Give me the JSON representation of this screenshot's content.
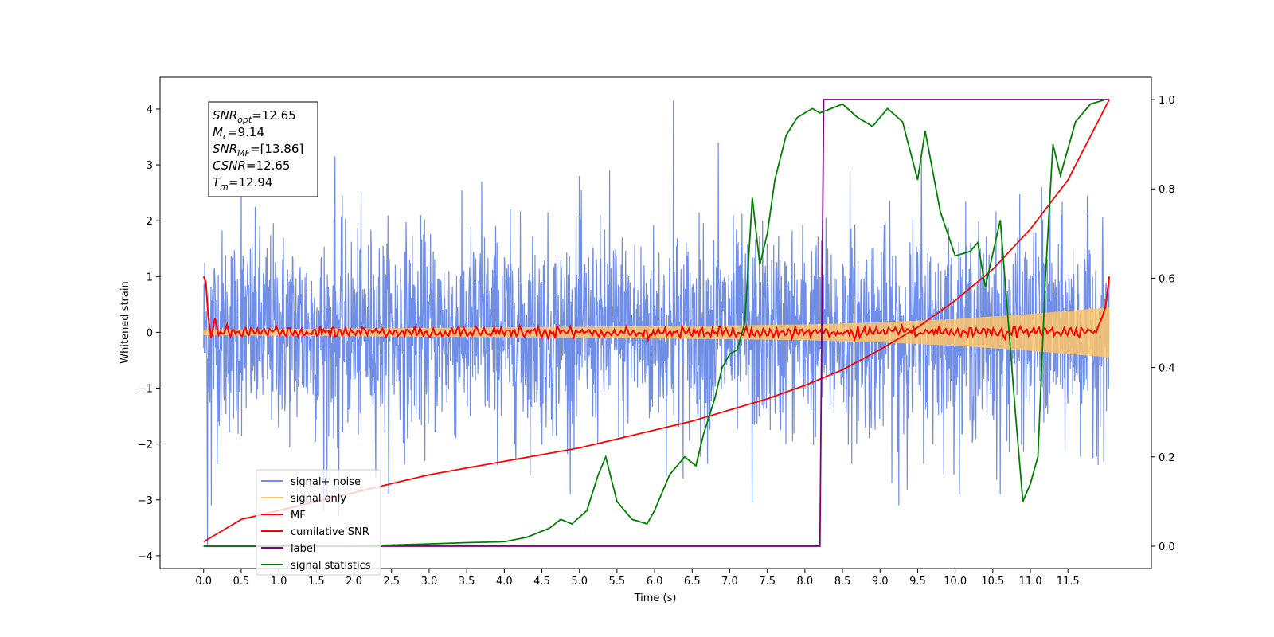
{
  "chart_data": {
    "type": "line",
    "xlabel": "Time (s)",
    "ylabel": "Whitened strain",
    "ylabel_right": "",
    "xlim": [
      -0.58,
      12.61
    ],
    "ylim_left": [
      -4.23,
      4.57
    ],
    "ylim_right": [
      -0.05,
      1.05
    ],
    "grid": false,
    "x_ticks": [
      {
        "value": 0.0,
        "label": "0.0"
      },
      {
        "value": 0.5,
        "label": "0.5"
      },
      {
        "value": 1.0,
        "label": "1.0"
      },
      {
        "value": 1.5,
        "label": "1.5"
      },
      {
        "value": 2.0,
        "label": "2.0"
      },
      {
        "value": 2.5,
        "label": "2.5"
      },
      {
        "value": 3.0,
        "label": "3.0"
      },
      {
        "value": 3.5,
        "label": "3.5"
      },
      {
        "value": 4.0,
        "label": "4.0"
      },
      {
        "value": 4.5,
        "label": "4.5"
      },
      {
        "value": 5.0,
        "label": "5.0"
      },
      {
        "value": 5.5,
        "label": "5.5"
      },
      {
        "value": 6.0,
        "label": "6.0"
      },
      {
        "value": 6.5,
        "label": "6.5"
      },
      {
        "value": 7.0,
        "label": "7.0"
      },
      {
        "value": 7.5,
        "label": "7.5"
      },
      {
        "value": 8.0,
        "label": "8.0"
      },
      {
        "value": 8.5,
        "label": "8.5"
      },
      {
        "value": 9.0,
        "label": "9.0"
      },
      {
        "value": 9.5,
        "label": "9.5"
      },
      {
        "value": 10.0,
        "label": "10.0"
      },
      {
        "value": 10.5,
        "label": "10.5"
      },
      {
        "value": 11.0,
        "label": "11.0"
      },
      {
        "value": 11.5,
        "label": "11.5"
      }
    ],
    "y_ticks_left": [
      {
        "value": -4,
        "label": "−4"
      },
      {
        "value": -3,
        "label": "−3"
      },
      {
        "value": -2,
        "label": "−2"
      },
      {
        "value": -1,
        "label": "−1"
      },
      {
        "value": 0,
        "label": "0"
      },
      {
        "value": 1,
        "label": "1"
      },
      {
        "value": 2,
        "label": "2"
      },
      {
        "value": 3,
        "label": "3"
      },
      {
        "value": 4,
        "label": "4"
      }
    ],
    "y_ticks_right": [
      {
        "value": 0.0,
        "label": "0.0"
      },
      {
        "value": 0.2,
        "label": "0.2"
      },
      {
        "value": 0.4,
        "label": "0.4"
      },
      {
        "value": 0.6,
        "label": "0.6"
      },
      {
        "value": 0.8,
        "label": "0.8"
      },
      {
        "value": 1.0,
        "label": "1.0"
      }
    ],
    "info_box": [
      {
        "name": "SNR",
        "sub": "opt",
        "value": "=12.65"
      },
      {
        "name": "M",
        "sub": "c",
        "value": "=9.14"
      },
      {
        "name": "SNR",
        "sub": "MF",
        "value": "=[13.86]"
      },
      {
        "name": "CSNR",
        "sub": "",
        "value": "=12.65"
      },
      {
        "name": "T",
        "sub": "m",
        "value": "=12.94"
      }
    ],
    "series": [
      {
        "name": "signal+ noise",
        "axis": "left",
        "color": "#6f8ee8",
        "kind": "noise",
        "x_range": [
          0.0,
          12.05
        ],
        "center": 0.0,
        "typical_amplitude": 1.2,
        "spikes": [
          {
            "x": 0.05,
            "y": -3.8
          },
          {
            "x": 0.1,
            "y": -3.1
          },
          {
            "x": 0.5,
            "y": 2.9
          },
          {
            "x": 1.6,
            "y": -3.2
          },
          {
            "x": 1.75,
            "y": 3.15
          },
          {
            "x": 1.8,
            "y": -3.3
          },
          {
            "x": 3.7,
            "y": 2.7
          },
          {
            "x": 5.0,
            "y": 2.8
          },
          {
            "x": 5.4,
            "y": 2.9
          },
          {
            "x": 6.25,
            "y": 4.15
          },
          {
            "x": 6.85,
            "y": 3.4
          },
          {
            "x": 7.3,
            "y": -3.05
          },
          {
            "x": 8.6,
            "y": 2.9
          },
          {
            "x": 9.25,
            "y": -3.1
          },
          {
            "x": 9.55,
            "y": 3.1
          },
          {
            "x": 10.6,
            "y": -2.9
          },
          {
            "x": 11.15,
            "y": 2.6
          }
        ]
      },
      {
        "name": "signal only",
        "axis": "left",
        "color": "#ffc56a",
        "kind": "chirp",
        "x_range": [
          0.0,
          12.05
        ],
        "envelope_x": [
          0.0,
          2.0,
          4.0,
          6.0,
          8.0,
          9.0,
          10.0,
          11.0,
          12.05
        ],
        "envelope_y": [
          0.05,
          0.07,
          0.09,
          0.11,
          0.14,
          0.18,
          0.24,
          0.33,
          0.45
        ]
      },
      {
        "name": "MF",
        "axis": "left",
        "color": "#ff0000",
        "kind": "mf",
        "x_range": [
          0.0,
          12.05
        ],
        "edge_points": [
          {
            "x": 0.0,
            "y": 1.0
          },
          {
            "x": 0.03,
            "y": 0.9
          },
          {
            "x": 0.06,
            "y": 0.3
          },
          {
            "x": 0.1,
            "y": -0.1
          },
          {
            "x": 0.15,
            "y": 0.25
          },
          {
            "x": 0.2,
            "y": -0.05
          },
          {
            "x": 11.9,
            "y": 0.1
          },
          {
            "x": 11.95,
            "y": 0.25
          },
          {
            "x": 12.0,
            "y": 0.45
          },
          {
            "x": 12.05,
            "y": 1.0
          }
        ],
        "body_amplitude": 0.1
      },
      {
        "name": "cumilative SNR",
        "axis": "right",
        "color": "#ff0000",
        "kind": "line",
        "x": [
          0.0,
          0.5,
          1.0,
          1.5,
          2.0,
          2.5,
          3.0,
          3.5,
          4.0,
          4.5,
          5.0,
          5.5,
          6.0,
          6.5,
          7.0,
          7.5,
          8.0,
          8.5,
          9.0,
          9.5,
          10.0,
          10.5,
          11.0,
          11.5,
          12.05
        ],
        "y": [
          0.01,
          0.06,
          0.08,
          0.1,
          0.12,
          0.14,
          0.16,
          0.175,
          0.19,
          0.205,
          0.22,
          0.24,
          0.26,
          0.28,
          0.305,
          0.33,
          0.36,
          0.395,
          0.44,
          0.49,
          0.55,
          0.62,
          0.71,
          0.82,
          1.0
        ]
      },
      {
        "name": "label",
        "axis": "right",
        "color": "#800080",
        "kind": "line",
        "x": [
          0.0,
          8.2,
          8.25,
          12.05
        ],
        "y": [
          0.0,
          0.0,
          1.0,
          1.0
        ]
      },
      {
        "name": "signal statistics",
        "axis": "right",
        "color": "#008000",
        "kind": "line",
        "x": [
          0.0,
          1.0,
          2.0,
          3.0,
          3.5,
          4.0,
          4.3,
          4.6,
          4.75,
          4.9,
          5.1,
          5.25,
          5.35,
          5.5,
          5.7,
          5.9,
          6.0,
          6.2,
          6.4,
          6.55,
          6.65,
          6.8,
          6.9,
          7.0,
          7.1,
          7.2,
          7.3,
          7.4,
          7.5,
          7.6,
          7.75,
          7.9,
          8.1,
          8.2,
          8.5,
          8.7,
          8.9,
          9.1,
          9.3,
          9.5,
          9.6,
          9.8,
          10.0,
          10.2,
          10.3,
          10.4,
          10.6,
          10.8,
          10.9,
          11.0,
          11.1,
          11.2,
          11.3,
          11.4,
          11.6,
          11.8,
          12.0
        ],
        "y": [
          0.0,
          0.0,
          0.0,
          0.005,
          0.008,
          0.01,
          0.02,
          0.04,
          0.06,
          0.05,
          0.08,
          0.16,
          0.2,
          0.1,
          0.06,
          0.05,
          0.08,
          0.16,
          0.2,
          0.18,
          0.25,
          0.33,
          0.4,
          0.43,
          0.44,
          0.5,
          0.78,
          0.63,
          0.7,
          0.82,
          0.92,
          0.96,
          0.98,
          0.97,
          0.99,
          0.96,
          0.94,
          0.98,
          0.95,
          0.82,
          0.93,
          0.75,
          0.65,
          0.66,
          0.68,
          0.58,
          0.73,
          0.3,
          0.1,
          0.14,
          0.2,
          0.6,
          0.9,
          0.83,
          0.95,
          0.99,
          1.0
        ]
      }
    ],
    "legend": {
      "position": "lower-left",
      "entries": [
        {
          "label": "signal+ noise",
          "color": "#6f8ee8"
        },
        {
          "label": "signal only",
          "color": "#ffc56a"
        },
        {
          "label": "MF",
          "color": "#ff0000"
        },
        {
          "label": "cumilative SNR",
          "color": "#ff0000"
        },
        {
          "label": "label",
          "color": "#800080"
        },
        {
          "label": "signal statistics",
          "color": "#008000"
        }
      ]
    }
  }
}
